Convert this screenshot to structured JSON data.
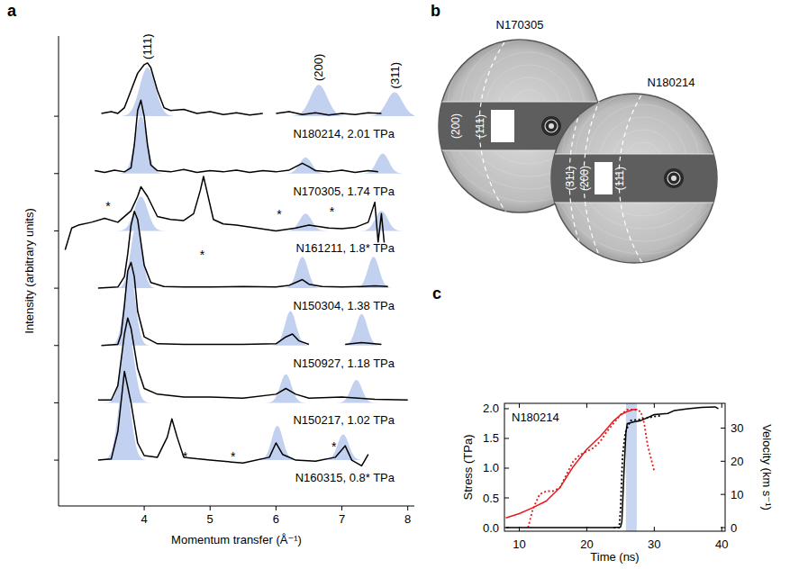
{
  "chart_data": [
    {
      "type": "line",
      "panel_label": "a",
      "x_label": "Momentum transfer (Å⁻¹)",
      "y_label": "Intensity (arbitrary units)",
      "xlim": [
        2.7,
        8.1
      ],
      "xticks": [
        4,
        5,
        6,
        7,
        8
      ],
      "ylim": [
        -0.8,
        7.4
      ],
      "yticks": [
        0,
        1,
        2,
        3,
        4,
        5,
        6
      ],
      "tick_labels": "x",
      "series": [
        {
          "name": "N180214, 2.01 TPa",
          "color": "#000000",
          "offset": 6,
          "x": [
            3.35,
            3.5,
            3.6,
            3.7,
            3.8,
            3.9,
            4.0,
            4.05,
            4.1,
            4.2,
            4.3,
            4.4,
            4.6,
            4.8,
            5.0,
            5.2,
            5.4,
            5.6,
            5.8,
            5.9,
            6.0,
            6.2,
            6.4,
            6.6,
            6.8,
            7.0,
            7.2,
            7.4,
            7.6
          ],
          "values": [
            0.05,
            0.08,
            0.05,
            0.15,
            0.45,
            0.75,
            0.9,
            0.93,
            0.85,
            0.45,
            0.15,
            0.1,
            0.12,
            0.05,
            0.08,
            0.03,
            0.06,
            0.02,
            0.05,
            null,
            0.05,
            0.08,
            0.03,
            0.06,
            0.02,
            0.05,
            0.03,
            0.06,
            0.05
          ],
          "peaks": [
            {
              "label": "(111)",
              "center": 4.05,
              "height": 0.85,
              "width": 0.28
            },
            {
              "label": "(200)",
              "center": 6.65,
              "height": 0.55,
              "width": 0.3
            },
            {
              "label": "(311)",
              "center": 7.8,
              "height": 0.42,
              "width": 0.28
            }
          ]
        },
        {
          "name": "N170305, 1.74 TPa",
          "color": "#000000",
          "offset": 5,
          "x": [
            3.25,
            3.4,
            3.55,
            3.7,
            3.8,
            3.85,
            3.9,
            3.95,
            4.0,
            4.05,
            4.1,
            4.2,
            4.4,
            4.6,
            4.8,
            5.0,
            5.2,
            5.4,
            5.6,
            5.8,
            6.0,
            6.2,
            6.3,
            6.4,
            6.5,
            6.6,
            6.8,
            7.0,
            7.2,
            7.4,
            7.55
          ],
          "values": [
            0.05,
            0.02,
            0.06,
            0.03,
            0.1,
            0.5,
            1.1,
            1.28,
            1.0,
            0.5,
            0.15,
            0.05,
            0.03,
            0.07,
            0.02,
            0.05,
            0.03,
            0.06,
            0.02,
            0.05,
            0.03,
            0.06,
            0.12,
            0.18,
            0.12,
            0.05,
            0.03,
            0.06,
            0.02,
            0.05,
            0.03
          ],
          "peaks": [
            {
              "center": 3.95,
              "height": 1.0,
              "width": 0.22
            },
            {
              "center": 6.45,
              "height": 0.28,
              "width": 0.22
            },
            {
              "center": 7.62,
              "height": 0.35,
              "width": 0.22
            }
          ]
        },
        {
          "name": "N161211, 1.8* TPa",
          "color": "#000000",
          "offset": 4,
          "x": [
            2.8,
            2.9,
            3.0,
            3.2,
            3.4,
            3.6,
            3.8,
            3.9,
            3.95,
            4.05,
            4.2,
            4.4,
            4.6,
            4.75,
            4.85,
            4.9,
            4.95,
            5.05,
            5.2,
            5.4,
            5.7,
            6.0,
            6.3,
            6.5,
            6.8,
            7.0,
            7.2,
            7.4,
            7.5,
            7.55,
            7.6,
            7.65
          ],
          "values": [
            -0.33,
            0.05,
            0.1,
            0.15,
            0.22,
            0.15,
            0.35,
            0.6,
            0.77,
            0.6,
            0.25,
            0.2,
            0.18,
            0.3,
            0.7,
            0.95,
            0.7,
            0.2,
            0.12,
            0.1,
            0.05,
            0.0,
            0.05,
            0.1,
            0.05,
            0.04,
            0.06,
            0.15,
            0.5,
            -0.2,
            0.3,
            -0.3
          ],
          "peaks": [
            {
              "center": 3.95,
              "height": 0.6,
              "width": 0.24
            },
            {
              "center": 6.45,
              "height": 0.3,
              "width": 0.22
            },
            {
              "center": 7.6,
              "height": 0.35,
              "width": 0.22
            }
          ],
          "annotations": [
            {
              "x": 3.45,
              "y": 0.5,
              "text": "*"
            },
            {
              "x": 4.88,
              "y": -0.35,
              "text": "*"
            },
            {
              "x": 6.05,
              "y": 0.35,
              "text": "*"
            },
            {
              "x": 6.85,
              "y": 0.4,
              "text": "*"
            }
          ]
        },
        {
          "name": "N150304, 1.38 TPa",
          "color": "#000000",
          "offset": 3,
          "x": [
            3.3,
            3.6,
            3.7,
            3.75,
            3.8,
            3.85,
            3.9,
            3.95,
            4.0,
            4.1,
            4.3,
            4.6,
            5.0,
            5.5,
            6.0,
            6.2,
            6.3,
            6.4,
            6.5,
            6.7,
            7.0,
            7.3,
            7.5,
            7.7
          ],
          "values": [
            0.0,
            0.02,
            0.2,
            0.6,
            1.1,
            1.34,
            1.2,
            0.8,
            0.4,
            0.1,
            0.03,
            0.02,
            0.02,
            0.03,
            0.02,
            0.05,
            0.1,
            0.15,
            0.07,
            0.03,
            0.02,
            0.03,
            0.04,
            0.03
          ],
          "peaks": [
            {
              "center": 3.88,
              "height": 1.1,
              "width": 0.2
            },
            {
              "center": 6.4,
              "height": 0.55,
              "width": 0.2
            },
            {
              "center": 7.48,
              "height": 0.55,
              "width": 0.2
            }
          ]
        },
        {
          "name": "N150927, 1.18 TPa",
          "color": "#000000",
          "offset": 2,
          "x": [
            3.35,
            3.6,
            3.65,
            3.7,
            3.75,
            3.8,
            3.85,
            3.9,
            4.0,
            4.2,
            4.6,
            5.0,
            5.5,
            6.0,
            6.15,
            6.25,
            6.35,
            6.5,
            6.8,
            7.05,
            7.3,
            7.6
          ],
          "values": [
            0.0,
            0.02,
            0.2,
            0.7,
            1.3,
            1.45,
            1.2,
            0.6,
            0.15,
            0.03,
            0.02,
            0.02,
            0.02,
            0.03,
            0.15,
            0.2,
            0.08,
            0.02,
            null,
            0.02,
            0.05,
            0.02
          ],
          "peaks": [
            {
              "center": 3.78,
              "height": 1.3,
              "width": 0.2
            },
            {
              "center": 6.22,
              "height": 0.6,
              "width": 0.2
            },
            {
              "center": 7.3,
              "height": 0.55,
              "width": 0.2
            }
          ]
        },
        {
          "name": "N150217, 1.02 TPa",
          "color": "#000000",
          "offset": 1,
          "x": [
            3.3,
            3.5,
            3.6,
            3.7,
            3.75,
            3.8,
            3.9,
            4.0,
            4.2,
            4.6,
            5.0,
            5.5,
            6.0,
            6.15,
            6.3,
            6.5,
            7.0,
            7.5,
            8.0
          ],
          "values": [
            0.05,
            0.05,
            0.3,
            1.2,
            1.48,
            1.3,
            0.6,
            0.25,
            0.15,
            0.1,
            0.1,
            0.08,
            0.15,
            0.25,
            0.15,
            0.08,
            0.1,
            0.06,
            0.05
          ],
          "peaks": [
            {
              "center": 3.75,
              "height": 1.3,
              "width": 0.22
            },
            {
              "center": 6.15,
              "height": 0.5,
              "width": 0.2
            },
            {
              "center": 7.22,
              "height": 0.4,
              "width": 0.2
            }
          ]
        },
        {
          "name": "N160315, 0.8* TPa",
          "color": "#000000",
          "offset": 0,
          "x": [
            3.3,
            3.5,
            3.6,
            3.7,
            3.8,
            3.9,
            4.0,
            4.2,
            4.35,
            4.42,
            4.5,
            4.6,
            5.0,
            5.5,
            5.9,
            6.0,
            6.1,
            6.3,
            6.6,
            6.9,
            7.05,
            7.15,
            7.3,
            7.4
          ],
          "values": [
            0.0,
            0.02,
            0.5,
            1.55,
            1.0,
            0.3,
            0.08,
            0.05,
            0.4,
            0.72,
            0.4,
            0.05,
            0.0,
            -0.05,
            0.05,
            0.3,
            0.1,
            0.0,
            -0.02,
            0.05,
            0.25,
            0.0,
            -0.1,
            0.1
          ],
          "peaks": [
            {
              "center": 3.7,
              "height": 1.45,
              "width": 0.22
            },
            {
              "center": 6.02,
              "height": 0.6,
              "width": 0.2
            },
            {
              "center": 7.02,
              "height": 0.45,
              "width": 0.2
            }
          ],
          "annotations": [
            {
              "x": 4.62,
              "y": 0.12,
              "text": "*"
            },
            {
              "x": 5.35,
              "y": 0.12,
              "text": "*"
            },
            {
              "x": 6.88,
              "y": 0.3,
              "text": "*"
            }
          ]
        }
      ]
    },
    {
      "type": "image",
      "panel_label": "b",
      "images": [
        {
          "name": "N170305",
          "labels": [
            "(200)",
            "(111)"
          ]
        },
        {
          "name": "N180214",
          "labels": [
            "(311)",
            "(200)",
            "(111)"
          ]
        }
      ]
    },
    {
      "type": "line",
      "panel_label": "c",
      "annotation": "N180214",
      "x_label": "Time (ns)",
      "y_label": "Stress (TPa)",
      "y2_label": "Velocity (km s⁻¹)",
      "xlim": [
        7.8,
        40.5
      ],
      "xticks": [
        10,
        20,
        30,
        40
      ],
      "ylim": [
        -0.06,
        2.09
      ],
      "yticks": [
        {
          "value": 0,
          "label": "0.0"
        },
        0.5,
        {
          "value": 1,
          "label": "1.0"
        },
        1.5,
        {
          "value": 2,
          "label": "2.0"
        }
      ],
      "y2lim": [
        -1.08,
        37.45
      ],
      "y2ticks": [
        0,
        10,
        20,
        30
      ],
      "shaded_x": [
        25.8,
        27.4
      ],
      "series": [
        {
          "axis": "y2",
          "color": "#e41a1c",
          "line_style": "solid",
          "x": [
            8,
            10,
            12,
            14,
            16,
            18,
            20,
            22,
            24,
            25,
            26,
            27,
            27.5
          ],
          "values": [
            2.9,
            4.2,
            6,
            8,
            12,
            18.4,
            23.6,
            27.5,
            32.2,
            34,
            35,
            35.6,
            35.6
          ]
        },
        {
          "axis": "y2",
          "color": "#e41a1c",
          "line_style": "dotted",
          "x": [
            11.3,
            12,
            13,
            14,
            15,
            16,
            17,
            18,
            19,
            20,
            21,
            22,
            23,
            24,
            25,
            26,
            27,
            28,
            28.5,
            29,
            29.5,
            30
          ],
          "values": [
            0,
            5.5,
            10,
            11,
            11,
            12,
            16,
            20,
            22,
            23,
            24,
            26,
            29,
            31.5,
            34,
            35.6,
            35.6,
            35,
            31.5,
            25,
            21,
            17
          ]
        },
        {
          "axis": "y",
          "color": "#000000",
          "line_style": "dotted",
          "x": [
            24,
            24.8,
            25,
            25.3,
            25.7,
            26.5,
            28,
            30,
            31
          ],
          "values": [
            0,
            0,
            0.3,
            1.2,
            1.6,
            1.8,
            1.82,
            1.87,
            1.88
          ]
        },
        {
          "axis": "y",
          "color": "#000000",
          "line_style": "solid",
          "x": [
            8,
            12,
            16,
            20,
            24,
            25,
            25.2,
            25.5,
            25.8,
            26,
            27,
            28,
            29,
            30,
            32,
            33,
            35,
            37,
            39,
            39.5
          ],
          "values": [
            0,
            0,
            0,
            0,
            0,
            0.01,
            0.1,
            0.9,
            1.6,
            1.75,
            1.78,
            1.8,
            1.85,
            1.9,
            1.92,
            1.97,
            2.0,
            2.02,
            2.03,
            2.0
          ]
        }
      ]
    }
  ]
}
